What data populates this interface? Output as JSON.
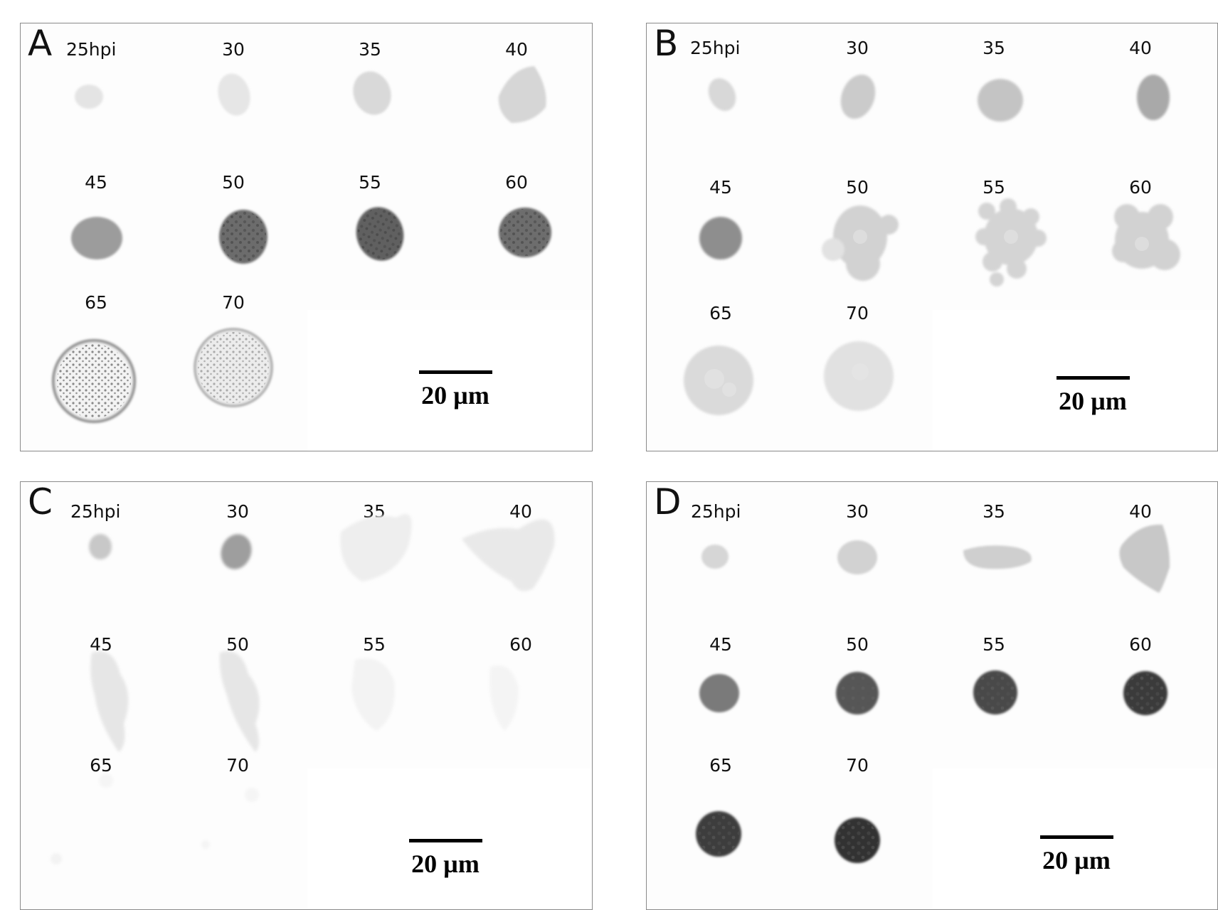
{
  "panels": [
    {
      "letter": "A",
      "scale_label": "20 µm",
      "labels": [
        "25hpi",
        "30",
        "35",
        "40",
        "45",
        "50",
        "55",
        "60",
        "65",
        "70"
      ]
    },
    {
      "letter": "B",
      "scale_label": "20 µm",
      "labels": [
        "25hpi",
        "30",
        "35",
        "40",
        "45",
        "50",
        "55",
        "60",
        "65",
        "70"
      ]
    },
    {
      "letter": "C",
      "scale_label": "20 µm",
      "labels": [
        "25hpi",
        "30",
        "35",
        "40",
        "45",
        "50",
        "55",
        "60",
        "65",
        "70"
      ]
    },
    {
      "letter": "D",
      "scale_label": "20 µm",
      "labels": [
        "25hpi",
        "30",
        "35",
        "40",
        "45",
        "50",
        "55",
        "60",
        "65",
        "70"
      ]
    }
  ]
}
